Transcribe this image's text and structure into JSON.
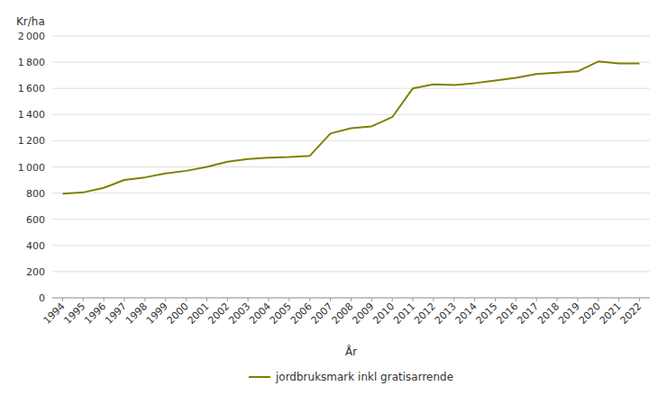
{
  "chart_data": {
    "type": "line",
    "x_label": "År",
    "y_label": "Kr/ha",
    "x": [
      1994,
      1995,
      1996,
      1997,
      1998,
      1999,
      2000,
      2001,
      2002,
      2003,
      2004,
      2005,
      2006,
      2007,
      2008,
      2009,
      2010,
      2011,
      2012,
      2013,
      2014,
      2015,
      2016,
      2017,
      2018,
      2019,
      2020,
      2021,
      2022
    ],
    "series": [
      {
        "name": "jordbruksmark inkl gratisarrende",
        "color": "#808000",
        "values": [
          795,
          805,
          840,
          900,
          920,
          950,
          970,
          1000,
          1040,
          1060,
          1070,
          1075,
          1085,
          1255,
          1295,
          1310,
          1380,
          1600,
          1630,
          1625,
          1640,
          1660,
          1680,
          1710,
          1720,
          1730,
          1805,
          1790,
          1790
        ]
      }
    ],
    "xlim": [
      1993.5,
      2022.5
    ],
    "xticks": [
      1994,
      1995,
      1996,
      1997,
      1998,
      1999,
      2000,
      2001,
      2002,
      2003,
      2004,
      2005,
      2006,
      2007,
      2008,
      2009,
      2010,
      2011,
      2012,
      2013,
      2014,
      2015,
      2016,
      2017,
      2018,
      2019,
      2020,
      2021,
      2022
    ],
    "ylim": [
      0,
      2000
    ],
    "yticks": [
      0,
      200,
      400,
      600,
      800,
      {
        "value": 1000,
        "label": "1 000"
      },
      {
        "value": 1200,
        "label": "1 200"
      },
      {
        "value": 1400,
        "label": "1 400"
      },
      {
        "value": 1600,
        "label": "1 600"
      },
      {
        "value": 1800,
        "label": "1 800"
      },
      {
        "value": 2000,
        "label": "2 000"
      }
    ],
    "grid": true,
    "legend": "bottom"
  }
}
